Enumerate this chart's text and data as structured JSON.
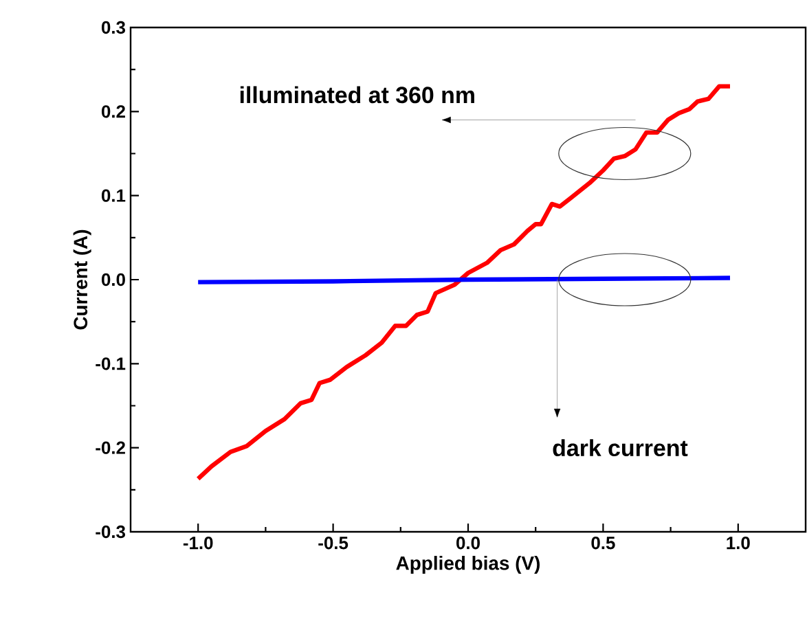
{
  "chart_data": {
    "type": "line",
    "xlabel": "Applied bias (V)",
    "ylabel": "Current (A)",
    "xlim": [
      -1.25,
      1.25
    ],
    "ylim": [
      -0.3,
      0.3
    ],
    "xticks": [
      {
        "value": -1.0,
        "label": "-1.0"
      },
      -0.5,
      {
        "value": 0,
        "label": "0.0"
      },
      0.5,
      {
        "value": 1.0,
        "label": "1.0"
      }
    ],
    "yticks": [
      -0.3,
      -0.2,
      -0.1,
      {
        "value": 0,
        "label": "0.0"
      },
      0.1,
      0.2,
      0.3
    ],
    "grid": false,
    "marker": "none",
    "line_style": "solid",
    "series": [
      {
        "color": "#ff0000",
        "x": [
          -1.0,
          -0.95,
          -0.88,
          -0.82,
          -0.75,
          -0.68,
          -0.62,
          -0.58,
          -0.55,
          -0.51,
          -0.45,
          -0.38,
          -0.32,
          -0.27,
          -0.23,
          -0.19,
          -0.15,
          -0.12,
          -0.05,
          0.0,
          0.07,
          0.12,
          0.17,
          0.22,
          0.25,
          0.27,
          0.31,
          0.34,
          0.38,
          0.45,
          0.5,
          0.54,
          0.58,
          0.62,
          0.66,
          0.7,
          0.74,
          0.78,
          0.82,
          0.85,
          0.89,
          0.93,
          0.97
        ],
        "values": [
          -0.237,
          -0.222,
          -0.205,
          -0.198,
          -0.18,
          -0.166,
          -0.147,
          -0.143,
          -0.123,
          -0.119,
          -0.104,
          -0.09,
          -0.075,
          -0.055,
          -0.055,
          -0.042,
          -0.038,
          -0.016,
          -0.006,
          0.008,
          0.02,
          0.035,
          0.042,
          0.058,
          0.066,
          0.066,
          0.09,
          0.087,
          0.097,
          0.115,
          0.13,
          0.144,
          0.147,
          0.155,
          0.175,
          0.175,
          0.19,
          0.198,
          0.203,
          0.212,
          0.215,
          0.23,
          0.23
        ]
      },
      {
        "color": "#0000ff",
        "x": [
          -1.0,
          -0.5,
          0.0,
          0.5,
          0.97
        ],
        "values": [
          -0.003,
          -0.002,
          0.0,
          0.001,
          0.002
        ]
      }
    ],
    "annotations": [
      "illuminated at 360 nm",
      {
        "text": "dark current",
        "x": 0.33,
        "y": 0.0
      }
    ]
  }
}
